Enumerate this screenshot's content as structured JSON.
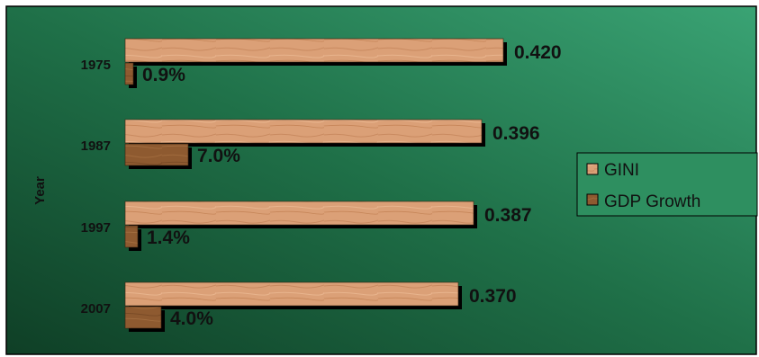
{
  "chart_data": {
    "type": "bar",
    "orientation": "horizontal",
    "ylabel": "Year",
    "categories": [
      "1975",
      "1987",
      "1997",
      "2007"
    ],
    "series": [
      {
        "name": "GINI",
        "values": [
          0.42,
          0.396,
          0.387,
          0.37
        ],
        "labels": [
          "0.420",
          "0.396",
          "0.387",
          "0.370"
        ],
        "color": "#d9966a"
      },
      {
        "name": "GDP Growth",
        "values": [
          0.9,
          7.0,
          1.4,
          4.0
        ],
        "labels": [
          "0.9%",
          "7.0%",
          "1.4%",
          "4.0%"
        ],
        "color": "#8b5a2b"
      }
    ],
    "grid": false,
    "legend_position": "right"
  },
  "colors": {
    "background_dark": "#124a2e",
    "background_light": "#3a9e70",
    "bar_shadow": "#000000"
  }
}
